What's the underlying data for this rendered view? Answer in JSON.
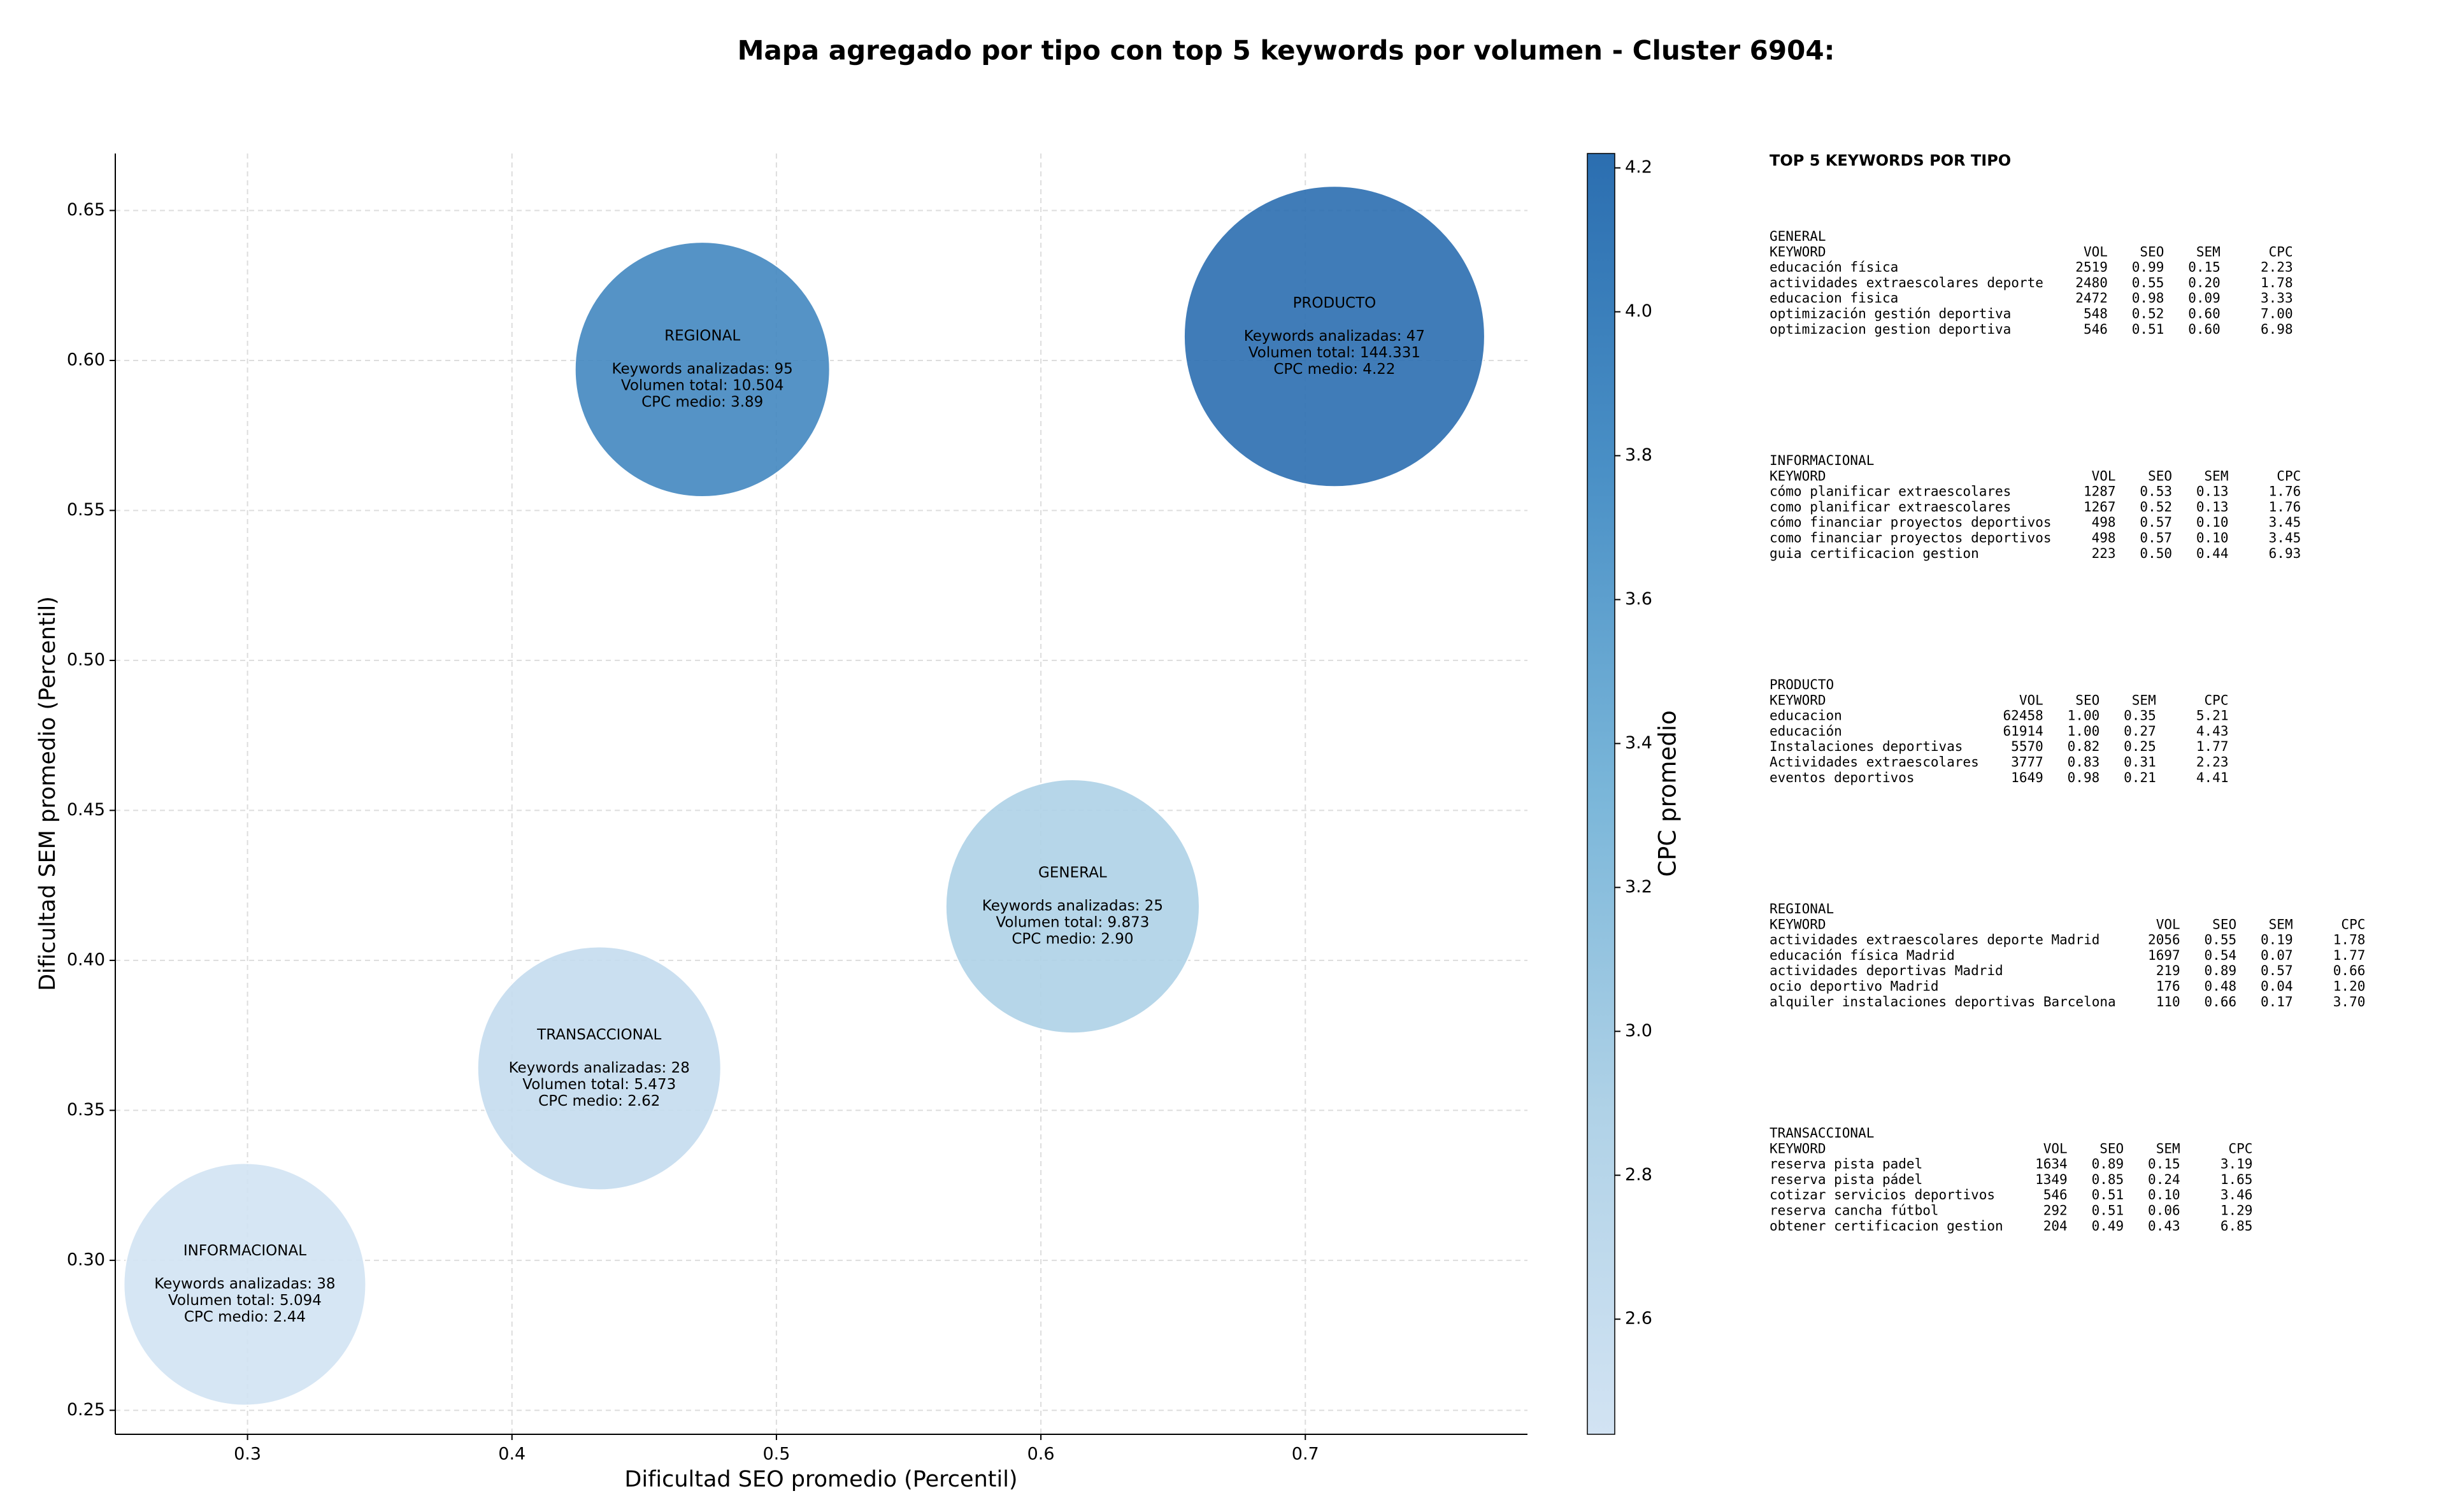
{
  "chart_data": {
    "type": "bubble",
    "title": "Mapa agregado por tipo con top 5 keywords por volumen - Cluster 6904:",
    "x_label": "Dificultad SEO promedio (Percentil)",
    "y_label": "Dificultad SEM promedio (Percentil)",
    "xlim": [
      0.25,
      0.784
    ],
    "ylim": [
      0.242,
      0.669
    ],
    "xticks": [
      0.3,
      0.4,
      0.5,
      0.6,
      0.7
    ],
    "yticks": [
      0.25,
      {
        "value": 0.3,
        "label": "0.30"
      },
      0.35,
      {
        "value": 0.4,
        "label": "0.40"
      },
      0.45,
      {
        "value": 0.5,
        "label": "0.50"
      },
      0.55,
      {
        "value": 0.6,
        "label": "0.60"
      },
      0.65
    ],
    "grid": true,
    "colorbar": {
      "label": "CPC promedio",
      "lim": [
        2.44,
        4.22
      ],
      "ticks": [
        2.6,
        2.8,
        {
          "value": 3,
          "label": "3.0"
        },
        3.2,
        3.4,
        3.6,
        3.8,
        {
          "value": 4,
          "label": "4.0"
        },
        4.2
      ],
      "colormap": [
        "#d2e3f3",
        "#b0d2e7",
        "#7ab6d9",
        "#4a90c6",
        "#2b6eb0"
      ]
    },
    "points": [
      {
        "name": "INFORMACIONAL",
        "x": 0.299,
        "y": 0.292,
        "volume": 5094,
        "cpc": 2.44,
        "labels": [
          "Keywords analizadas: 38",
          "Volumen total: 5.094",
          "CPC medio: 2.44"
        ]
      },
      {
        "name": "TRANSACCIONAL",
        "x": 0.433,
        "y": 0.364,
        "volume": 5473,
        "cpc": 2.62,
        "labels": [
          "Keywords analizadas: 28",
          "Volumen total: 5.473",
          "CPC medio: 2.62"
        ]
      },
      {
        "name": "GENERAL",
        "x": 0.612,
        "y": 0.418,
        "volume": 9873,
        "cpc": 2.9,
        "labels": [
          "Keywords analizadas: 25",
          "Volumen total: 9.873",
          "CPC medio: 2.90"
        ]
      },
      {
        "name": "REGIONAL",
        "x": 0.472,
        "y": 0.597,
        "volume": 10504,
        "cpc": 3.89,
        "labels": [
          "Keywords analizadas: 95",
          "Volumen total: 10.504",
          "CPC medio: 3.89"
        ]
      },
      {
        "name": "PRODUCTO",
        "x": 0.711,
        "y": 0.608,
        "volume": 144331,
        "cpc": 4.22,
        "labels": [
          "Keywords analizadas: 47",
          "Volumen total: 144.331",
          "CPC medio: 4.22"
        ]
      }
    ]
  },
  "keyword_panel": {
    "title": "TOP 5 KEYWORDS POR TIPO",
    "columns": [
      "KEYWORD",
      "VOL",
      "SEO",
      "SEM",
      "CPC"
    ],
    "groups": [
      {
        "name": "GENERAL",
        "rows": [
          [
            "educación física",
            "2519",
            "0.99",
            "0.15",
            "2.23"
          ],
          [
            "actividades extraescolares deporte",
            "2480",
            "0.55",
            "0.20",
            "1.78"
          ],
          [
            "educacion fisica",
            "2472",
            "0.98",
            "0.09",
            "3.33"
          ],
          [
            "optimización gestión deportiva",
            "548",
            "0.52",
            "0.60",
            "7.00"
          ],
          [
            "optimizacion gestion deportiva",
            "546",
            "0.51",
            "0.60",
            "6.98"
          ]
        ]
      },
      {
        "name": "INFORMACIONAL",
        "rows": [
          [
            "cómo planificar extraescolares",
            "1287",
            "0.53",
            "0.13",
            "1.76"
          ],
          [
            "como planificar extraescolares",
            "1267",
            "0.52",
            "0.13",
            "1.76"
          ],
          [
            "cómo financiar proyectos deportivos",
            "498",
            "0.57",
            "0.10",
            "3.45"
          ],
          [
            "como financiar proyectos deportivos",
            "498",
            "0.57",
            "0.10",
            "3.45"
          ],
          [
            "guia certificacion gestion",
            "223",
            "0.50",
            "0.44",
            "6.93"
          ]
        ]
      },
      {
        "name": "PRODUCTO",
        "rows": [
          [
            "educacion",
            "62458",
            "1.00",
            "0.35",
            "5.21"
          ],
          [
            "educación",
            "61914",
            "1.00",
            "0.27",
            "4.43"
          ],
          [
            "Instalaciones deportivas",
            "5570",
            "0.82",
            "0.25",
            "1.77"
          ],
          [
            "Actividades extraescolares",
            "3777",
            "0.83",
            "0.31",
            "2.23"
          ],
          [
            "eventos deportivos",
            "1649",
            "0.98",
            "0.21",
            "4.41"
          ]
        ]
      },
      {
        "name": "REGIONAL",
        "rows": [
          [
            "actividades extraescolares deporte Madrid",
            "2056",
            "0.55",
            "0.19",
            "1.78"
          ],
          [
            "educación física Madrid",
            "1697",
            "0.54",
            "0.07",
            "1.77"
          ],
          [
            "actividades deportivas Madrid",
            "219",
            "0.89",
            "0.57",
            "0.66"
          ],
          [
            "ocio deportivo Madrid",
            "176",
            "0.48",
            "0.04",
            "1.20"
          ],
          [
            "alquiler instalaciones deportivas Barcelona",
            "110",
            "0.66",
            "0.17",
            "3.70"
          ]
        ]
      },
      {
        "name": "TRANSACCIONAL",
        "rows": [
          [
            "reserva pista padel",
            "1634",
            "0.89",
            "0.15",
            "3.19"
          ],
          [
            "reserva pista pádel",
            "1349",
            "0.85",
            "0.24",
            "1.65"
          ],
          [
            "cotizar servicios deportivos",
            "546",
            "0.51",
            "0.10",
            "3.46"
          ],
          [
            "reserva cancha fútbol",
            "292",
            "0.51",
            "0.06",
            "1.29"
          ],
          [
            "obtener certificacion gestion",
            "204",
            "0.49",
            "0.43",
            "6.85"
          ]
        ]
      }
    ]
  }
}
